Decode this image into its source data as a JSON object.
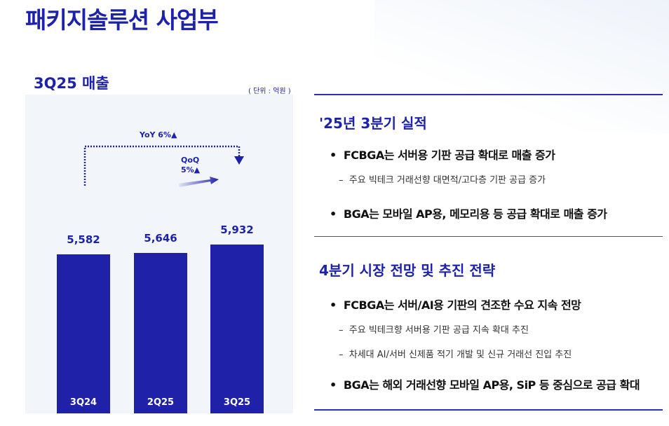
{
  "page_title": "패키지솔루션 사업부",
  "chart_data": {
    "type": "bar",
    "title": "3Q25 매출",
    "unit": "( 단위 : 억원 )",
    "categories": [
      "3Q24",
      "2Q25",
      "3Q25"
    ],
    "values": [
      5582,
      5646,
      5932
    ],
    "value_labels": [
      "5,582",
      "5,646",
      "5,932"
    ],
    "ylim": [
      0,
      8400
    ],
    "color": "#1f22a8",
    "annotations": {
      "yoy": "YoY 6%▲",
      "qoq_line1": "QoQ",
      "qoq_line2": "5%▲"
    }
  },
  "right": {
    "section1": {
      "heading": "'25년 3분기 실적",
      "bullets": [
        {
          "text": "FCBGA는 서버용 기판 공급 확대로 매출 증가",
          "sub": [
            "주요 빅테크 거래선향 대면적/고다층 기판 공급 증가"
          ]
        },
        {
          "text": "BGA는 모바일 AP용, 메모리용 등 공급 확대로 매출 증가",
          "sub": []
        }
      ]
    },
    "section2": {
      "heading": "4분기 시장 전망 및 추진 전략",
      "bullets": [
        {
          "text": "FCBGA는 서버/AI용 기판의 견조한 수요 지속 전망",
          "sub": [
            "주요 빅테크향 서버용 기판 공급 지속 확대 추진",
            "차세대 AI/서버 신제품 적기 개발 및 신규 거래선 진입 추진"
          ]
        },
        {
          "text": "BGA는 해외 거래선향 모바일 AP용, SiP 등 중심으로 공급 확대",
          "sub": []
        }
      ]
    }
  }
}
